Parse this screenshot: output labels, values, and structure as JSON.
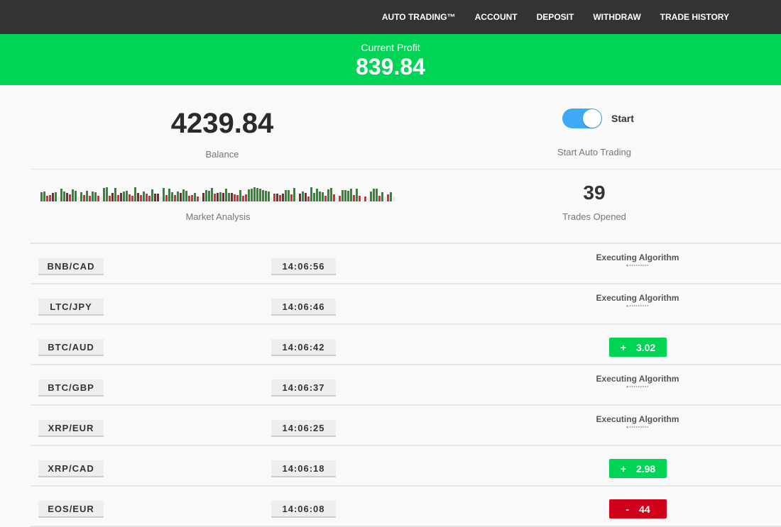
{
  "nav": [
    "AUTO TRADING™",
    "ACCOUNT",
    "DEPOSIT",
    "WITHDRAW",
    "TRADE HISTORY"
  ],
  "profit": {
    "label": "Current Profit",
    "value": "839.84"
  },
  "balance": {
    "value": "4239.84",
    "label": "Balance"
  },
  "auto": {
    "toggle_on": true,
    "start_label": "Start",
    "label": "Start Auto Trading"
  },
  "market": {
    "label": "Market Analysis"
  },
  "trades": {
    "value": "39",
    "label": "Trades Opened"
  },
  "colors": {
    "green": "#00d455",
    "red": "#d0021b",
    "nav": "#333333",
    "toggle": "#3ea9f5"
  },
  "rows": [
    {
      "pair": "BNB/CAD",
      "time": "14:06:56",
      "status": "Executing Algorithm"
    },
    {
      "pair": "LTC/JPY",
      "time": "14:06:46",
      "status": "Executing Algorithm"
    },
    {
      "pair": "BTC/AUD",
      "time": "14:06:42",
      "sign": "+",
      "result": "3.02"
    },
    {
      "pair": "BTC/GBP",
      "time": "14:06:37",
      "status": "Executing Algorithm"
    },
    {
      "pair": "XRP/EUR",
      "time": "14:06:25",
      "status": "Executing Algorithm"
    },
    {
      "pair": "XRP/CAD",
      "time": "14:06:18",
      "sign": "+",
      "result": "2.98"
    },
    {
      "pair": "EOS/EUR",
      "time": "14:06:08",
      "sign": "-",
      "result": "44"
    }
  ]
}
